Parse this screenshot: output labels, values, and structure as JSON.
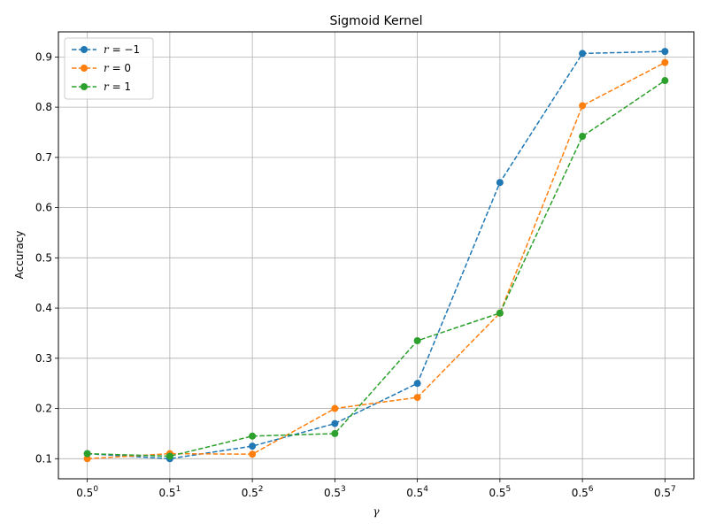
{
  "chart_data": {
    "type": "line",
    "title": "Sigmoid Kernel",
    "xlabel": "γ",
    "ylabel": "Accuracy",
    "x_ticks": [
      {
        "base": "0.5",
        "exp": "0"
      },
      {
        "base": "0.5",
        "exp": "1"
      },
      {
        "base": "0.5",
        "exp": "2"
      },
      {
        "base": "0.5",
        "exp": "3"
      },
      {
        "base": "0.5",
        "exp": "4"
      },
      {
        "base": "0.5",
        "exp": "5"
      },
      {
        "base": "0.5",
        "exp": "6"
      },
      {
        "base": "0.5",
        "exp": "7"
      }
    ],
    "x": [
      0,
      1,
      2,
      3,
      4,
      5,
      6,
      7
    ],
    "y_ticks": [
      "0.1",
      "0.2",
      "0.3",
      "0.4",
      "0.5",
      "0.6",
      "0.7",
      "0.8",
      "0.9"
    ],
    "ylim": [
      0.06,
      0.95
    ],
    "xlim": [
      -0.35,
      7.35
    ],
    "grid": true,
    "legend_position": "top-left",
    "series": [
      {
        "label_var": "r",
        "label_eq": " = −1",
        "color": "#1f77b4",
        "values": [
          0.11,
          0.1,
          0.125,
          0.17,
          0.25,
          0.65,
          0.907,
          0.911
        ]
      },
      {
        "label_var": "r",
        "label_eq": " = 0",
        "color": "#ff7f0e",
        "values": [
          0.1,
          0.11,
          0.109,
          0.2,
          0.222,
          0.39,
          0.803,
          0.889
        ]
      },
      {
        "label_var": "r",
        "label_eq": " = 1",
        "color": "#2ca02c",
        "values": [
          0.11,
          0.105,
          0.145,
          0.15,
          0.335,
          0.39,
          0.742,
          0.853
        ]
      }
    ]
  }
}
